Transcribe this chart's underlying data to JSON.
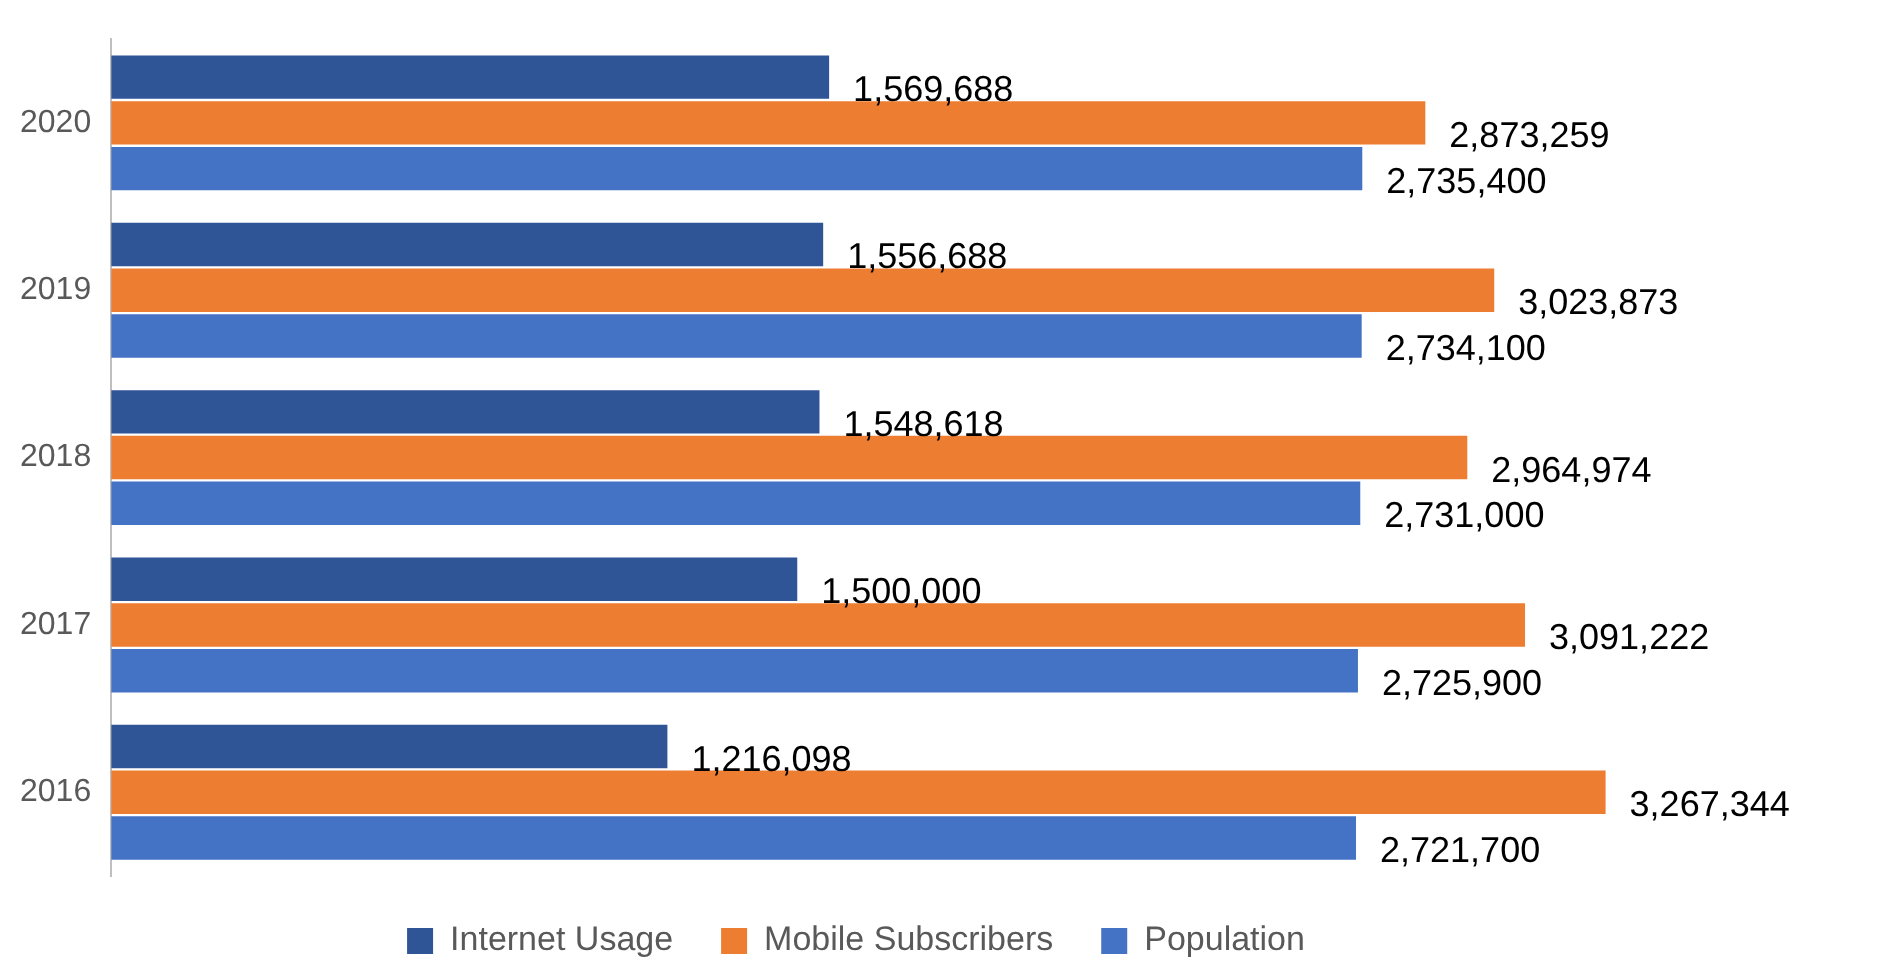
{
  "chart_data": {
    "type": "bar",
    "orientation": "horizontal",
    "categories": [
      "2020",
      "2019",
      "2018",
      "2017",
      "2016"
    ],
    "series": [
      {
        "name": "Internet Usage",
        "color": "#2f5597",
        "values": [
          1569688,
          1556688,
          1548618,
          1500000,
          1216098
        ],
        "value_labels": [
          "1,569,688",
          "1,556,688",
          "1,548,618",
          "1,500,000",
          "1,216,098"
        ]
      },
      {
        "name": "Mobile Subscribers",
        "color": "#ed7d31",
        "values": [
          2873259,
          3023873,
          2964974,
          3091222,
          3267344
        ],
        "value_labels": [
          "2,873,259",
          "3,023,873",
          "2,964,974",
          "3,091,222",
          "3,267,344"
        ]
      },
      {
        "name": "Population",
        "color": "#4472c4",
        "values": [
          2735400,
          2734100,
          2731000,
          2725900,
          2721700
        ],
        "value_labels": [
          "2,735,400",
          "2,734,100",
          "2,731,000",
          "2,725,900",
          "2,721,700"
        ]
      }
    ],
    "tick_labels": "y",
    "grid": false,
    "legend": "bottom"
  }
}
